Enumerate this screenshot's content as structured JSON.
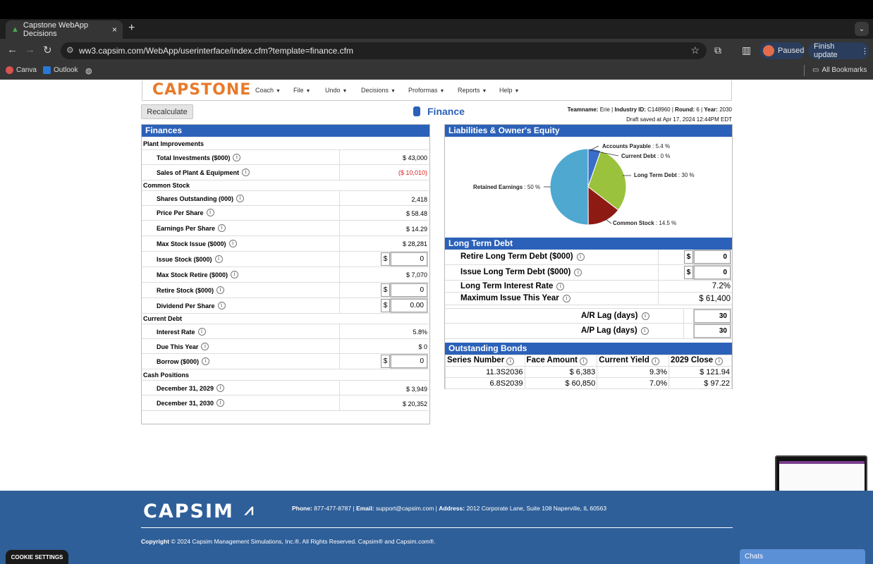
{
  "browser": {
    "tab_title": "Capstone WebApp Decisions",
    "tab_close": "×",
    "new_tab": "+",
    "url": "ww3.capsim.com/WebApp/userinterface/index.cfm?template=finance.cfm",
    "profile_status": "Paused",
    "finish_update": "Finish update",
    "bookmarks": [
      "Canva",
      "Outlook"
    ],
    "all_bookmarks": "All Bookmarks"
  },
  "app": {
    "logo": "CAPSTONE",
    "menu": [
      "Coach",
      "File",
      "Undo",
      "Decisions",
      "Proformas",
      "Reports",
      "Help"
    ],
    "recalculate": "Recalculate",
    "page_title": "Finance",
    "team": {
      "teamname_label": "Teamname:",
      "teamname": "Erie",
      "industry_label": "Industry ID:",
      "industry": "C148960",
      "round_label": "Round:",
      "round": "6",
      "year_label": "Year:",
      "year": "2030",
      "draft_saved": "Draft saved at Apr 17, 2024 12:44PM EDT"
    }
  },
  "finances": {
    "title": "Finances",
    "plant_header": "Plant Improvements",
    "total_investments_label": "Total Investments ($000)",
    "total_investments": "$ 43,000",
    "sales_plant_label": "Sales of Plant & Equipment",
    "sales_plant": "($ 10,010)",
    "common_header": "Common Stock",
    "shares_out_label": "Shares Outstanding (000)",
    "shares_out": "2,418",
    "price_label": "Price Per Share",
    "price": "$ 58.48",
    "eps_label": "Earnings Per Share",
    "eps": "$ 14.29",
    "max_issue_label": "Max Stock Issue ($000)",
    "max_issue": "$ 28,281",
    "issue_label": "Issue Stock ($000)",
    "issue": "0",
    "max_retire_label": "Max Stock Retire ($000)",
    "max_retire": "$ 7,070",
    "retire_label": "Retire Stock ($000)",
    "retire": "0",
    "dividend_label": "Dividend Per Share",
    "dividend": "0.00",
    "current_header": "Current Debt",
    "interest_label": "Interest Rate",
    "interest": "5.8%",
    "due_label": "Due This Year",
    "due": "$ 0",
    "borrow_label": "Borrow ($000)",
    "borrow": "0",
    "cash_header": "Cash Positions",
    "dec2029_label": "December 31, 2029",
    "dec2029": "$ 3,949",
    "dec2030_label": "December 31, 2030",
    "dec2030": "$ 20,352",
    "dollar": "$"
  },
  "liabilities": {
    "title": "Liabilities & Owner's Equity",
    "chart_data": {
      "type": "pie",
      "slices": [
        {
          "label": "Accounts Payable",
          "value": 5.4,
          "color": "#3a6fc9",
          "text": ": 5.4 %"
        },
        {
          "label": "Current Debt",
          "value": 0,
          "color": "#888888",
          "text": ": 0 %"
        },
        {
          "label": "Long Term Debt",
          "value": 30,
          "color": "#9ac23c",
          "text": ": 30 %"
        },
        {
          "label": "Common Stock",
          "value": 14.5,
          "color": "#8e1a14",
          "text": ": 14.5 %"
        },
        {
          "label": "Retained Earnings",
          "value": 50,
          "color": "#4fa8d0",
          "text": ": 50 %"
        }
      ]
    }
  },
  "long_term_debt": {
    "title": "Long Term Debt",
    "retire_label": "Retire Long Term Debt ($000)",
    "retire": "0",
    "issue_label": "Issue Long Term Debt ($000)",
    "issue": "0",
    "rate_label": "Long Term Interest Rate",
    "rate": "7.2%",
    "max_label": "Maximum Issue This Year",
    "max": "$ 61,400",
    "ar_label": "A/R Lag (days)",
    "ar": "30",
    "ap_label": "A/P Lag (days)",
    "ap": "30",
    "dollar": "$"
  },
  "bonds": {
    "title": "Outstanding Bonds",
    "headers": [
      "Series Number",
      "Face Amount",
      "Current Yield",
      "2029 Close"
    ],
    "rows": [
      [
        "11.3S2036",
        "$ 6,383",
        "9.3%",
        "$ 121.94"
      ],
      [
        "6.8S2039",
        "$ 60,850",
        "7.0%",
        "$ 97.22"
      ]
    ]
  },
  "footer": {
    "logo": "CAPSIM",
    "phone_label": "Phone:",
    "phone": "877-477-8787",
    "email_label": "Email:",
    "email": "support@capsim.com",
    "address_label": "Address:",
    "address": "2012 Corporate Lane, Suite 108 Naperville, IL 60563",
    "copyright_label": "Copyright",
    "copyright": "© 2024 Capsim Management Simulations, Inc.®. All Rights Reserved. Capsim® and Capsim.com®.",
    "cookie": "COOKIE SETTINGS",
    "chats": "Chats"
  }
}
